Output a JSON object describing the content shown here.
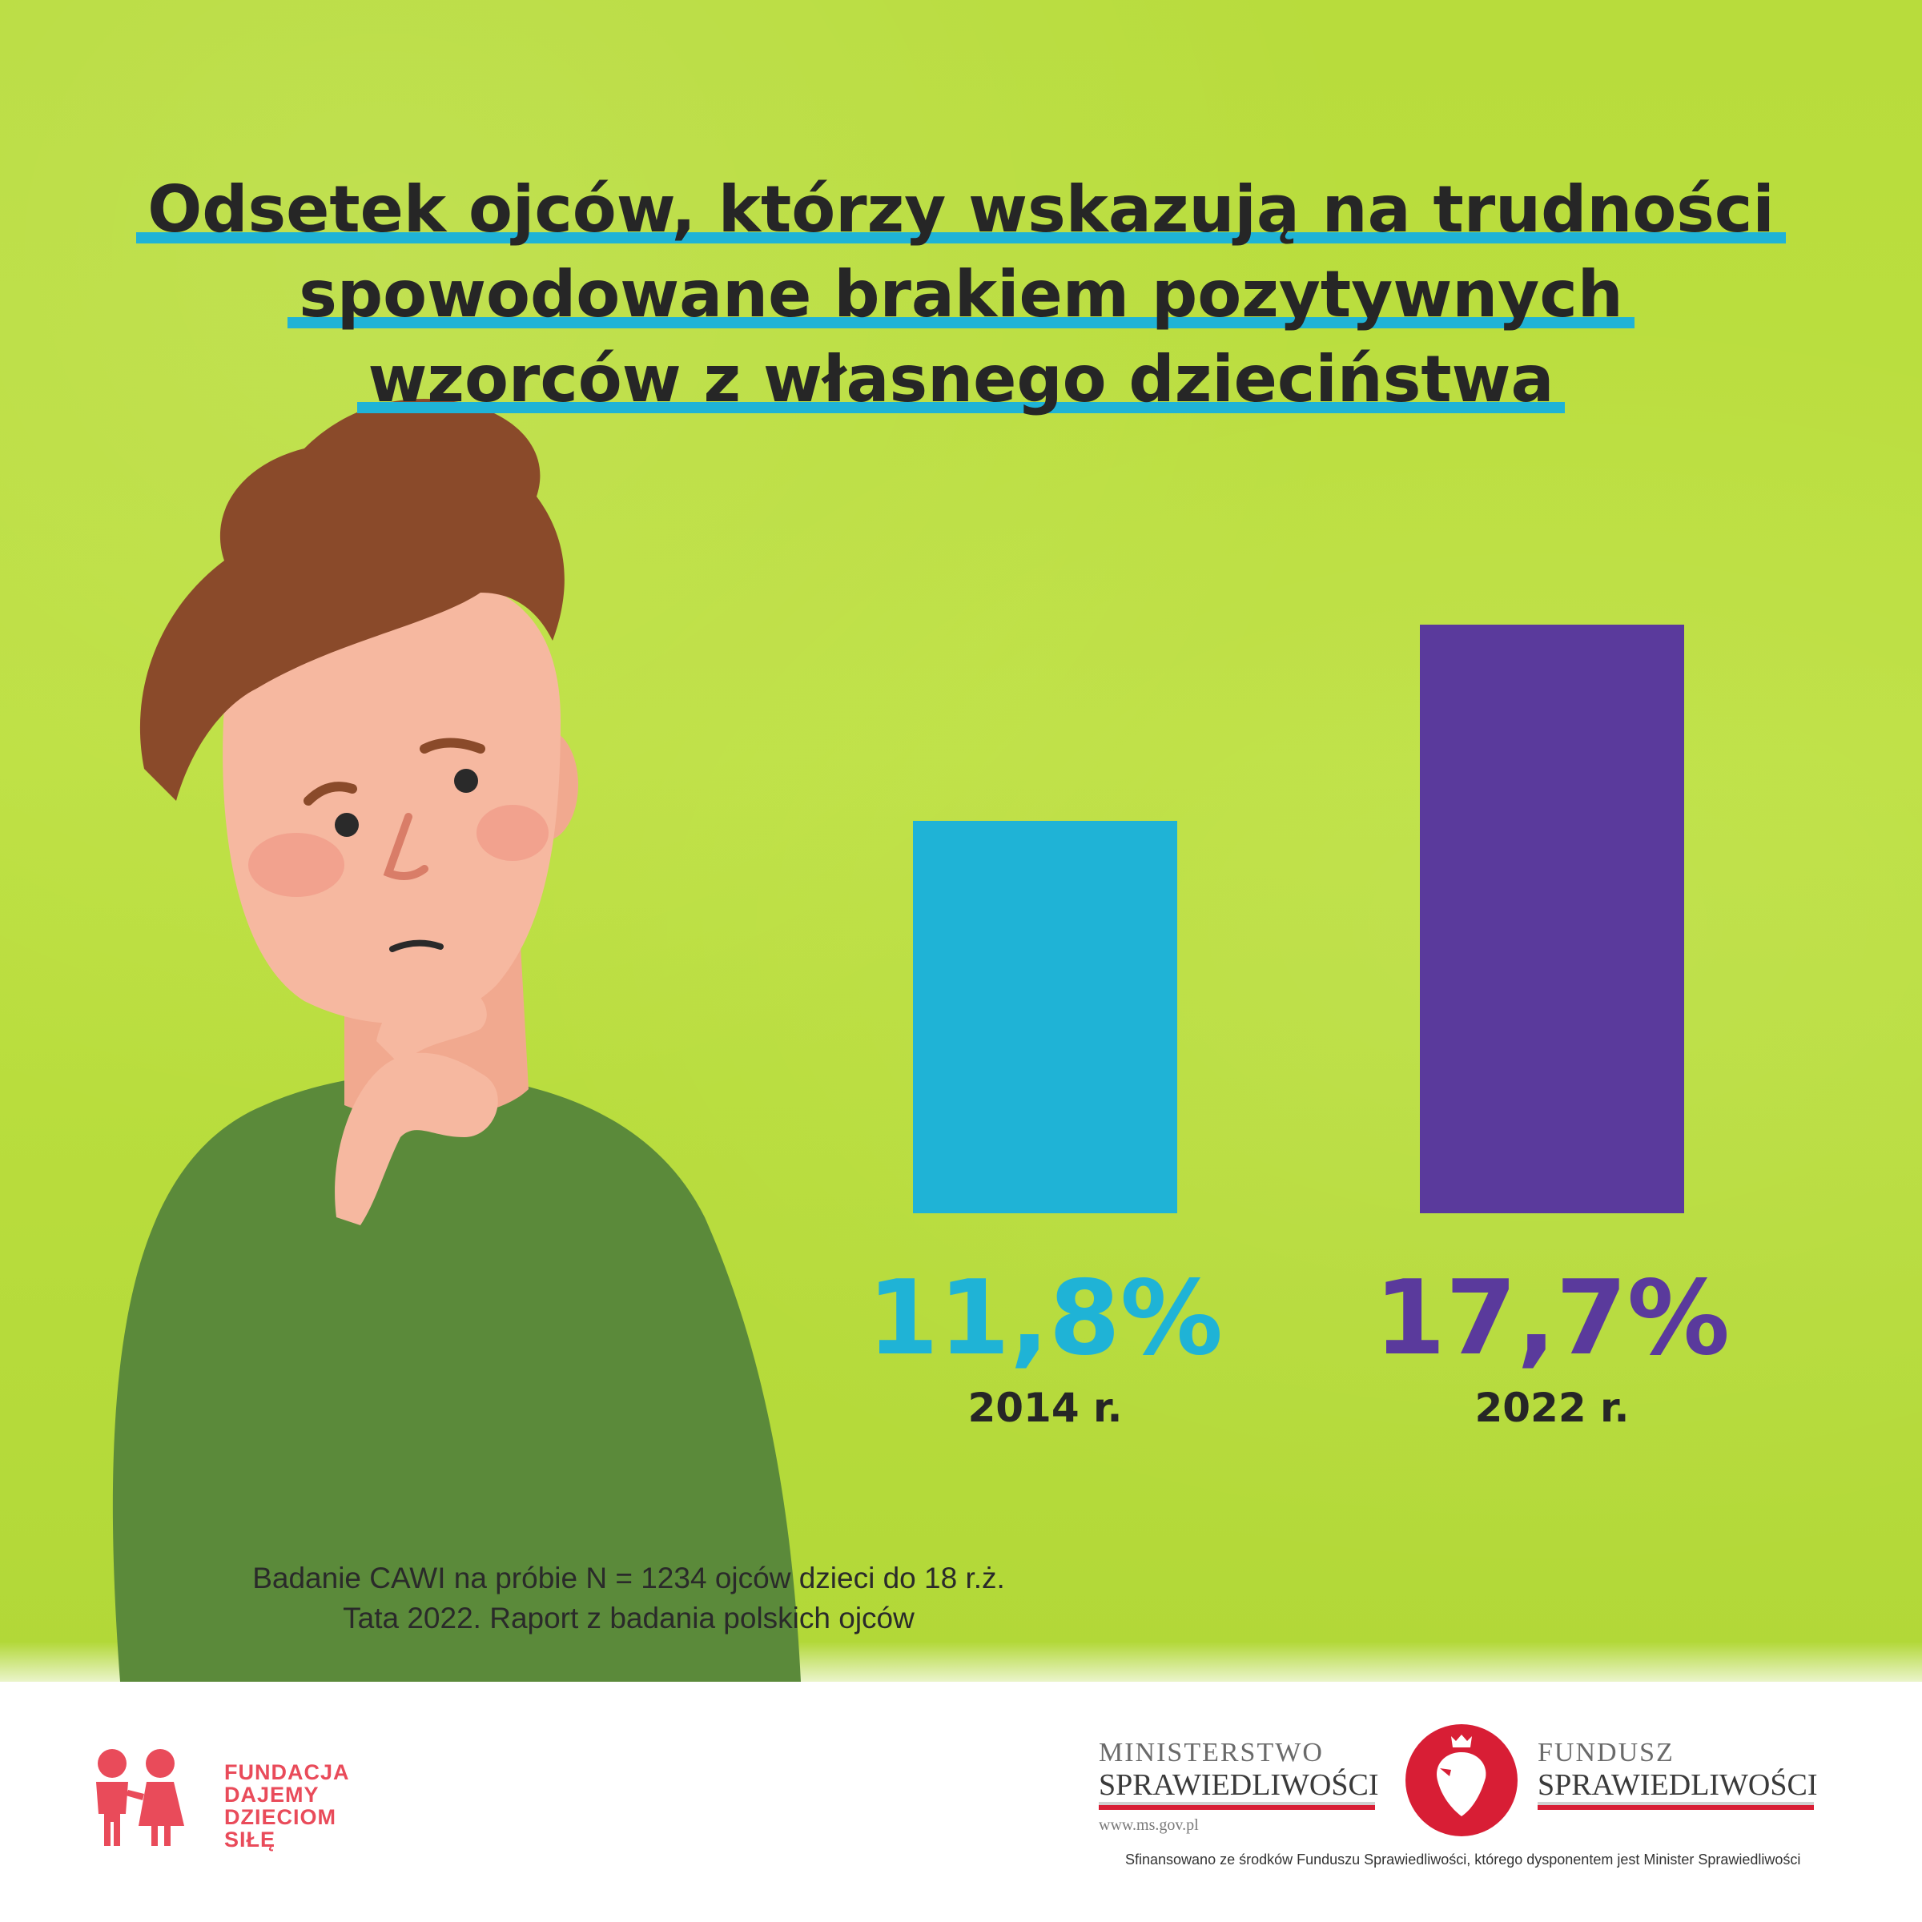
{
  "title": {
    "line1": "Odsetek ojców, którzy wskazują na trudności",
    "line2": "spowodowane brakiem pozytywnych",
    "line3": "wzorców z własnego dzieciństwa"
  },
  "chart_data": {
    "type": "bar",
    "title": "Odsetek ojców, którzy wskazują na trudności spowodowane brakiem pozytywnych wzorców z własnego dzieciństwa",
    "categories": [
      "2014 r.",
      "2022 r."
    ],
    "values": [
      11.8,
      17.7
    ],
    "value_labels": [
      "11,8%",
      "17,7%"
    ],
    "colors": [
      "#1fb3d6",
      "#5a3a9c"
    ],
    "ylim": [
      0,
      17.7
    ],
    "grid": false,
    "legend": "none"
  },
  "source": {
    "line1": "Badanie CAWI na próbie N = 1234 ojców dzieci do 18 r.ż.",
    "line2": "Tata 2022. Raport z badania polskich ojców"
  },
  "footer": {
    "foundation": [
      "FUNDACJA",
      "DAJEMY",
      "DZIECIOM",
      "SIŁĘ"
    ],
    "ministry_line1": "MINISTERSTWO",
    "ministry_line2": "SPRAWIEDLIWOŚCI",
    "ministry_url": "www.ms.gov.pl",
    "fund_line1": "FUNDUSZ",
    "fund_line2": "SPRAWIEDLIWOŚCI",
    "financed_note": "Sfinansowano ze środków Funduszu Sprawiedliwości, którego dysponentem jest Minister Sprawiedliwości"
  },
  "colors": {
    "background": "#b8dc3c",
    "accent_cyan": "#1fb3d6",
    "accent_purple": "#5a3a9c",
    "brand_red": "#e94b5a"
  }
}
